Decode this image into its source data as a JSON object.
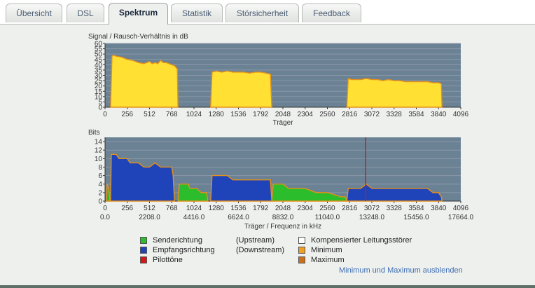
{
  "tabs": [
    {
      "label": "Übersicht",
      "active": false
    },
    {
      "label": "DSL",
      "active": false
    },
    {
      "label": "Spektrum",
      "active": true
    },
    {
      "label": "Statistik",
      "active": false
    },
    {
      "label": "Störsicherheit",
      "active": false
    },
    {
      "label": "Feedback",
      "active": false
    }
  ],
  "chart_data": [
    {
      "type": "area",
      "title": "Signal / Rausch-Verhältnis in dB",
      "xlabel": "Träger",
      "ylabel": "",
      "xlim": [
        0,
        4096
      ],
      "ylim": [
        0,
        60
      ],
      "xticks": [
        0,
        256,
        512,
        768,
        1024,
        1280,
        1536,
        1792,
        2048,
        2304,
        2560,
        2816,
        3072,
        3328,
        3584,
        3840,
        4096
      ],
      "yticks": [
        0,
        5,
        10,
        15,
        20,
        25,
        30,
        35,
        40,
        45,
        50,
        55,
        60
      ],
      "colors": {
        "fill": "#ffe033",
        "line": "#e6901a",
        "background": "#6b8194",
        "grid": "#8a9aa8"
      },
      "series": [
        {
          "x": [
            64,
            80,
            96,
            128,
            192,
            256,
            320,
            384,
            448,
            480,
            512,
            544,
            576,
            608,
            640,
            672,
            704,
            736,
            768,
            800,
            832,
            840
          ],
          "y": [
            0,
            48,
            49,
            48,
            47,
            45,
            44,
            42,
            41,
            42,
            43,
            41,
            42,
            41,
            44,
            42,
            42,
            41,
            40,
            39,
            36,
            0
          ]
        },
        {
          "x": [
            1216,
            1232,
            1280,
            1344,
            1408,
            1472,
            1536,
            1600,
            1664,
            1728,
            1792,
            1856,
            1904,
            1920
          ],
          "y": [
            0,
            33,
            34,
            33,
            34,
            33,
            33,
            33,
            32,
            33,
            33,
            32,
            31,
            0
          ]
        },
        {
          "x": [
            2784,
            2800,
            2840,
            2880,
            2944,
            3008,
            3072,
            3136,
            3200,
            3264,
            3328,
            3392,
            3456,
            3520,
            3584,
            3648,
            3712,
            3776,
            3840,
            3872,
            3880
          ],
          "y": [
            0,
            27,
            26,
            26,
            26,
            27,
            26,
            26,
            25,
            26,
            25,
            25,
            24,
            24,
            24,
            24,
            24,
            23,
            23,
            22,
            0
          ]
        }
      ]
    },
    {
      "type": "area",
      "title": "Bits",
      "xlabel": "Träger / Frequenz in kHz",
      "ylabel": "",
      "xlim": [
        0,
        4096
      ],
      "ylim": [
        0,
        15
      ],
      "xticks": [
        0,
        256,
        512,
        768,
        1024,
        1280,
        1536,
        1792,
        2048,
        2304,
        2560,
        2816,
        3072,
        3328,
        3584,
        3840,
        4096
      ],
      "freq_ticks": [
        "0.0",
        "2208.0",
        "4416.0",
        "6624.0",
        "8832.0",
        "11040.0",
        "13248.0",
        "15456.0",
        "17664.0"
      ],
      "yticks": [
        0,
        2,
        4,
        6,
        8,
        10,
        12,
        14
      ],
      "colors": {
        "upstream": "#2bbd2b",
        "downstream": "#1f43b8",
        "pilot": "#d01818",
        "minmax_line": "#e6901a",
        "background": "#6b8194",
        "grid": "#8a9aa8"
      },
      "pilot_carrier": 3000,
      "series": [
        {
          "name": "Senderichtung",
          "x": [
            16,
            24,
            40,
            48,
            56
          ],
          "y": [
            0,
            4,
            3,
            2,
            0
          ]
        },
        {
          "name": "Empfangsrichtung",
          "x": [
            64,
            72,
            128,
            160,
            256,
            288,
            384,
            448,
            512,
            576,
            640,
            704,
            768,
            784,
            800
          ],
          "y": [
            0,
            11,
            11,
            10,
            10,
            9,
            9,
            8,
            8,
            9,
            8,
            8,
            8,
            6,
            0
          ]
        },
        {
          "name": "Senderichtung",
          "x": [
            840,
            856,
            960,
            976,
            1056,
            1104,
            1152,
            1168,
            1184
          ],
          "y": [
            0,
            4,
            4,
            3,
            3,
            2,
            2,
            2,
            0
          ]
        },
        {
          "name": "Empfangsrichtung",
          "x": [
            1216,
            1232,
            1344,
            1408,
            1472,
            1536,
            1600,
            1664,
            1728,
            1792,
            1856,
            1904,
            1920
          ],
          "y": [
            0,
            6,
            6,
            6,
            5,
            5,
            5,
            5,
            5,
            5,
            5,
            5,
            0
          ]
        },
        {
          "name": "Senderichtung",
          "x": [
            1920,
            1936,
            2048,
            2112,
            2176,
            2304,
            2432,
            2528,
            2560,
            2720,
            2768,
            2784
          ],
          "y": [
            0,
            4,
            4,
            3,
            3,
            3,
            2,
            2,
            2,
            1,
            1,
            0
          ]
        },
        {
          "name": "Empfangsrichtung",
          "x": [
            2784,
            2800,
            2880,
            2944,
            3008,
            3072,
            3200,
            3328,
            3456,
            3584,
            3712,
            3776,
            3840,
            3872,
            3880
          ],
          "y": [
            0,
            3,
            3,
            3,
            4,
            3,
            3,
            3,
            3,
            3,
            3,
            2,
            2,
            1,
            0
          ]
        }
      ]
    }
  ],
  "legend": {
    "upstream_label": "Senderichtung",
    "upstream_dir": "(Upstream)",
    "downstream_label": "Empfangsrichtung",
    "downstream_dir": "(Downstream)",
    "pilot_label": "Pilottöne",
    "komp_label": "Kompensierter Leitungsstörer",
    "min_label": "Minimum",
    "max_label": "Maximum"
  },
  "link_label": "Minimum und Maximum ausblenden"
}
